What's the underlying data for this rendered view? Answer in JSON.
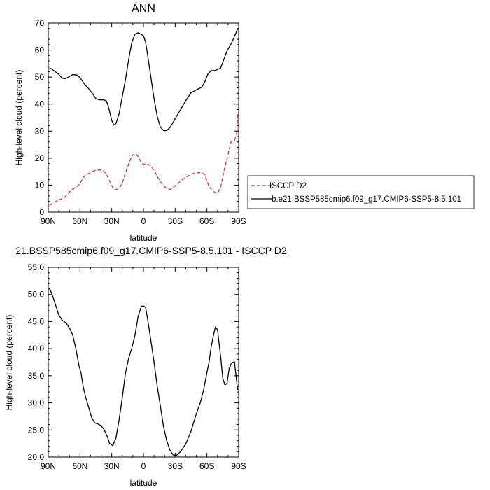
{
  "chart_data": [
    {
      "type": "line",
      "title": "ANN",
      "xlabel": "latitude",
      "ylabel": "High-level cloud (percent)",
      "xlim": [
        90,
        -90
      ],
      "ylim": [
        0,
        70
      ],
      "x_ticks": [
        90,
        60,
        30,
        0,
        -30,
        -60,
        -90
      ],
      "x_tick_labels": [
        "90N",
        "60N",
        "30N",
        "0",
        "30S",
        "60S",
        "90S"
      ],
      "y_ticks": [
        0,
        10,
        20,
        30,
        40,
        50,
        60,
        70
      ],
      "y_tick_labels": [
        "0",
        "10",
        "20",
        "30",
        "40",
        "50",
        "60",
        "70"
      ],
      "legend": "outside-right",
      "series": [
        {
          "name": "ISCCP D2",
          "color": "#e8262a",
          "style": "dashed",
          "x": [
            89,
            85,
            80,
            75,
            72,
            70,
            66,
            62,
            60,
            57,
            54,
            50,
            46,
            42,
            38,
            35,
            32,
            29,
            26,
            23,
            20,
            17,
            14,
            11,
            8,
            5,
            2,
            0,
            -3,
            -6,
            -10,
            -14,
            -18,
            -22,
            -25,
            -28,
            -31,
            -35,
            -40,
            -45,
            -50,
            -55,
            -58,
            -60,
            -62,
            -65,
            -68,
            -70,
            -73,
            -76,
            -80,
            -83,
            -86,
            -88,
            -89
          ],
          "y": [
            2.5,
            3.5,
            4.5,
            5.3,
            6.5,
            7.5,
            8.7,
            9.8,
            10.5,
            12.8,
            13.9,
            14.6,
            15.4,
            15.7,
            15.3,
            14.1,
            11.5,
            9.2,
            8.3,
            8.8,
            10.8,
            14.5,
            17.8,
            20.8,
            21.8,
            20.6,
            18.3,
            17.7,
            17.9,
            17.4,
            15.6,
            12.6,
            10.2,
            8.7,
            8.4,
            9.0,
            10.1,
            11.5,
            12.9,
            14.0,
            14.6,
            14.6,
            13.9,
            11.5,
            9.5,
            8.0,
            7.1,
            7.0,
            9.2,
            15.0,
            21.5,
            26.3,
            26.6,
            28.5,
            35.5
          ]
        },
        {
          "name": "b.e21.BSSP585cmip6.f09_g17.CMIP6-SSP5-8.5.101",
          "color": "#000000",
          "style": "solid",
          "x": [
            89,
            85,
            80,
            77,
            74,
            70,
            67,
            63,
            60,
            56,
            52,
            48,
            45,
            42,
            38,
            35,
            33,
            30,
            28,
            26,
            23,
            20,
            17,
            14,
            11,
            8,
            5,
            2,
            0,
            -2,
            -4,
            -7,
            -10,
            -13,
            -16,
            -19,
            -22,
            -25,
            -28,
            -31,
            -35,
            -40,
            -45,
            -50,
            -55,
            -58,
            -61,
            -64,
            -67,
            -70,
            -73,
            -75,
            -79,
            -83,
            -86,
            -89
          ],
          "y": [
            53.5,
            52.5,
            51.0,
            49.6,
            49.4,
            50.2,
            50.9,
            50.8,
            49.8,
            47.5,
            45.8,
            43.8,
            42.0,
            41.6,
            41.6,
            41.2,
            38.8,
            34.0,
            32.2,
            32.8,
            36.5,
            42.8,
            49.0,
            56.5,
            62.8,
            65.9,
            66.4,
            65.8,
            65.3,
            63.0,
            58.0,
            50.0,
            42.0,
            35.5,
            31.5,
            30.2,
            30.2,
            31.3,
            33.2,
            35.3,
            37.9,
            41.3,
            44.2,
            45.3,
            46.2,
            48.2,
            51.2,
            52.4,
            52.4,
            52.8,
            53.4,
            55.5,
            59.7,
            62.4,
            65.0,
            67.8
          ]
        }
      ]
    },
    {
      "type": "line",
      "title": "21.BSSP585cmip6.f09_g17.CMIP6-SSP5-8.5.101 - ISCCP D2",
      "xlabel": "latitude",
      "ylabel": "High-level cloud (percent)",
      "xlim": [
        90,
        -90
      ],
      "ylim": [
        20,
        55
      ],
      "x_ticks": [
        90,
        60,
        30,
        0,
        -30,
        -60,
        -90
      ],
      "x_tick_labels": [
        "90N",
        "60N",
        "30N",
        "0",
        "30S",
        "60S",
        "90S"
      ],
      "y_ticks": [
        20,
        25,
        30,
        35,
        40,
        45,
        50,
        55
      ],
      "y_tick_labels": [
        "20.0",
        "25.0",
        "30.0",
        "35.0",
        "40.0",
        "45.0",
        "50.0",
        "55.0"
      ],
      "series": [
        {
          "color": "#000000",
          "style": "solid",
          "x": [
            89,
            86,
            83,
            80,
            77,
            73,
            70,
            67,
            64,
            61,
            59,
            57,
            55,
            52,
            49,
            46,
            43,
            40,
            37,
            34,
            32,
            29,
            26,
            23,
            20,
            17,
            14,
            11,
            8,
            5,
            2,
            0,
            -2,
            -4,
            -7,
            -10,
            -13,
            -16,
            -19,
            -22,
            -25,
            -28,
            -31,
            -35,
            -40,
            -45,
            -50,
            -54,
            -57,
            -60,
            -62,
            -64,
            -66,
            -68,
            -70,
            -73,
            -75,
            -77,
            -79,
            -81,
            -83,
            -86,
            -89
          ],
          "y": [
            51.2,
            49.8,
            48.0,
            46.2,
            45.3,
            44.7,
            43.8,
            42.6,
            40.1,
            36.9,
            35.5,
            33.0,
            31.3,
            29.3,
            27.3,
            26.3,
            26.1,
            25.8,
            25.0,
            23.7,
            22.5,
            22.1,
            23.5,
            26.9,
            31.0,
            35.5,
            38.2,
            40.1,
            42.5,
            46.0,
            47.8,
            47.9,
            47.6,
            45.4,
            41.5,
            37.5,
            33.1,
            29.4,
            25.6,
            23.0,
            21.3,
            20.4,
            20.3,
            21.0,
            22.4,
            24.8,
            28.0,
            30.2,
            32.5,
            35.6,
            37.5,
            40.3,
            42.3,
            44.0,
            43.5,
            38.5,
            34.5,
            33.3,
            33.6,
            36.3,
            37.3,
            37.6,
            32.4
          ]
        }
      ]
    }
  ]
}
